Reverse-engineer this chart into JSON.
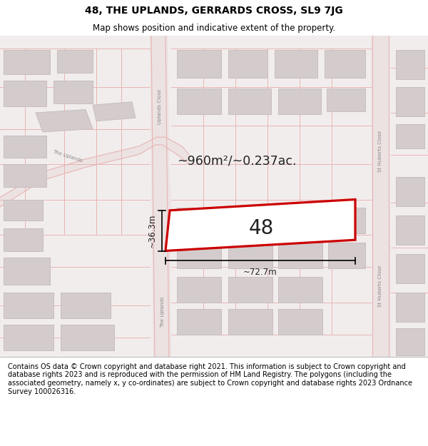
{
  "title": "48, THE UPLANDS, GERRARDS CROSS, SL9 7JG",
  "subtitle": "Map shows position and indicative extent of the property.",
  "footer": "Contains OS data © Crown copyright and database right 2021. This information is subject to Crown copyright and database rights 2023 and is reproduced with the permission of HM Land Registry. The polygons (including the associated geometry, namely x, y co-ordinates) are subject to Crown copyright and database rights 2023 Ordnance Survey 100026316.",
  "map_bg": "#f2eded",
  "road_color": "#e8b4b4",
  "road_bg": "#ede5e5",
  "building_fill": "#d4cccc",
  "building_edge": "#c8bebe",
  "highlight_fill": "#ffffff",
  "highlight_edge": "#cc0000",
  "highlight_lw": 2.2,
  "area_text": "~960m²/~0.237ac.",
  "property_label": "48",
  "dim_width": "~72.7m",
  "dim_height": "~36.3m",
  "title_fontsize": 10,
  "subtitle_fontsize": 8.5,
  "footer_fontsize": 7.0,
  "label_color": "#888888",
  "text_color": "#222222"
}
